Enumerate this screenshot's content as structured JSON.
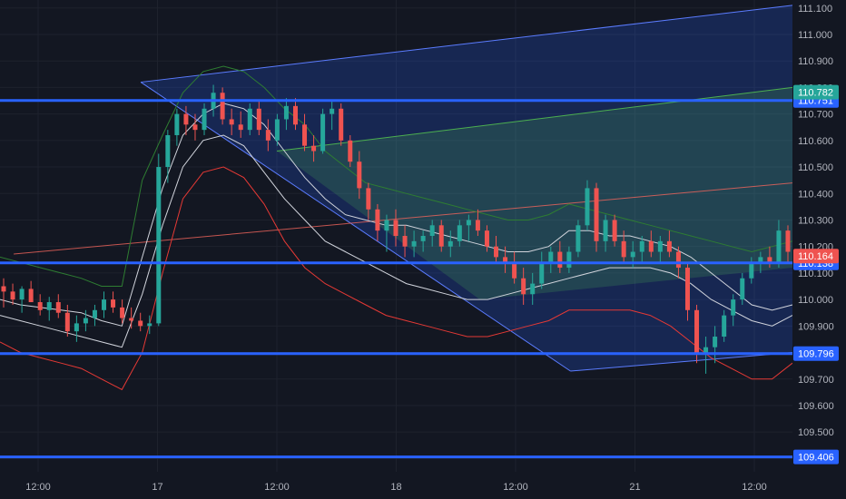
{
  "chart_data": {
    "type": "candlestick",
    "title": "",
    "xlabel": "",
    "ylabel": "",
    "ylim": [
      109.35,
      111.13
    ],
    "y_ticks": [
      "111.100",
      "111.000",
      "110.900",
      "110.800",
      "110.700",
      "110.600",
      "110.500",
      "110.400",
      "110.300",
      "110.200",
      "110.100",
      "110.000",
      "109.900",
      "109.800",
      "109.700",
      "109.600",
      "109.500",
      "109.400"
    ],
    "x_ticks": [
      {
        "label": "12:00",
        "t": 0
      },
      {
        "label": "17",
        "t": 0.5
      },
      {
        "label": "12:00",
        "t": 1.0
      },
      {
        "label": "18",
        "t": 1.5
      },
      {
        "label": "12:00",
        "t": 2.0
      },
      {
        "label": "21",
        "t": 2.5
      },
      {
        "label": "12:00",
        "t": 3.0
      }
    ],
    "horizontal_levels": [
      {
        "price": 110.751,
        "label": "110.751"
      },
      {
        "price": 110.138,
        "label": "110.138"
      },
      {
        "price": 109.796,
        "label": "109.796"
      },
      {
        "price": 109.406,
        "label": "109.406"
      }
    ],
    "price_badges": [
      {
        "price": 110.782,
        "label": "110.782",
        "color": "#26a69a"
      },
      {
        "price": 110.164,
        "label": "110.164",
        "color": "#ef5350"
      }
    ],
    "channel": {
      "upper_start": {
        "t": 0.43,
        "price": 110.82
      },
      "upper_end": {
        "t": 3.16,
        "price": 111.11
      },
      "lower_start": {
        "t": 2.23,
        "price": 109.73
      },
      "lower_end": {
        "t": 3.16,
        "price": 109.8
      },
      "mid_start": {
        "t": 0.43,
        "price": 110.24
      },
      "mid_end": {
        "t": 3.16,
        "price": 110.44
      }
    },
    "ohlc": [
      [
        110.05,
        110.08,
        109.97,
        110.03
      ],
      [
        110.03,
        110.06,
        109.98,
        110.0
      ],
      [
        110.0,
        110.05,
        109.95,
        110.04
      ],
      [
        110.04,
        110.07,
        110.0,
        109.99
      ],
      [
        109.99,
        110.02,
        109.94,
        109.96
      ],
      [
        109.96,
        110.01,
        109.92,
        109.99
      ],
      [
        109.99,
        110.02,
        109.93,
        109.95
      ],
      [
        109.95,
        109.98,
        109.86,
        109.88
      ],
      [
        109.88,
        109.94,
        109.84,
        109.91
      ],
      [
        109.91,
        109.96,
        109.88,
        109.93
      ],
      [
        109.93,
        109.98,
        109.9,
        109.96
      ],
      [
        109.96,
        110.03,
        109.93,
        110.0
      ],
      [
        110.0,
        110.03,
        109.95,
        109.97
      ],
      [
        109.97,
        110.0,
        109.91,
        109.93
      ],
      [
        109.93,
        109.97,
        109.89,
        109.92
      ],
      [
        109.92,
        109.95,
        109.88,
        109.9
      ],
      [
        109.9,
        109.94,
        109.87,
        109.91
      ],
      [
        109.91,
        110.55,
        109.9,
        110.5
      ],
      [
        110.5,
        110.64,
        110.44,
        110.62
      ],
      [
        110.62,
        110.72,
        110.58,
        110.7
      ],
      [
        110.7,
        110.73,
        110.62,
        110.66
      ],
      [
        110.66,
        110.7,
        110.6,
        110.64
      ],
      [
        110.64,
        110.74,
        110.62,
        110.72
      ],
      [
        110.72,
        110.81,
        110.69,
        110.78
      ],
      [
        110.78,
        110.8,
        110.66,
        110.68
      ],
      [
        110.68,
        110.72,
        110.62,
        110.66
      ],
      [
        110.66,
        110.71,
        110.61,
        110.64
      ],
      [
        110.64,
        110.74,
        110.62,
        110.72
      ],
      [
        110.72,
        110.75,
        110.62,
        110.64
      ],
      [
        110.64,
        110.68,
        110.56,
        110.6
      ],
      [
        110.6,
        110.7,
        110.58,
        110.68
      ],
      [
        110.68,
        110.76,
        110.64,
        110.73
      ],
      [
        110.73,
        110.76,
        110.64,
        110.66
      ],
      [
        110.66,
        110.7,
        110.56,
        110.58
      ],
      [
        110.58,
        110.62,
        110.52,
        110.56
      ],
      [
        110.56,
        110.72,
        110.55,
        110.7
      ],
      [
        110.7,
        110.75,
        110.64,
        110.72
      ],
      [
        110.72,
        110.74,
        110.58,
        110.6
      ],
      [
        110.6,
        110.62,
        110.5,
        110.52
      ],
      [
        110.52,
        110.56,
        110.38,
        110.42
      ],
      [
        110.42,
        110.44,
        110.3,
        110.34
      ],
      [
        110.34,
        110.36,
        110.22,
        110.26
      ],
      [
        110.26,
        110.32,
        110.18,
        110.3
      ],
      [
        110.3,
        110.34,
        110.2,
        110.24
      ],
      [
        110.24,
        110.28,
        110.16,
        110.2
      ],
      [
        110.2,
        110.26,
        110.16,
        110.22
      ],
      [
        110.22,
        110.26,
        110.18,
        110.24
      ],
      [
        110.24,
        110.3,
        110.2,
        110.28
      ],
      [
        110.28,
        110.3,
        110.18,
        110.2
      ],
      [
        110.2,
        110.26,
        110.16,
        110.22
      ],
      [
        110.22,
        110.3,
        110.2,
        110.28
      ],
      [
        110.28,
        110.32,
        110.22,
        110.3
      ],
      [
        110.3,
        110.34,
        110.24,
        110.26
      ],
      [
        110.26,
        110.28,
        110.18,
        110.2
      ],
      [
        110.2,
        110.24,
        110.14,
        110.16
      ],
      [
        110.16,
        110.2,
        110.1,
        110.14
      ],
      [
        110.14,
        110.18,
        110.06,
        110.08
      ],
      [
        110.08,
        110.12,
        109.98,
        110.02
      ],
      [
        110.02,
        110.1,
        109.98,
        110.06
      ],
      [
        110.06,
        110.18,
        110.04,
        110.14
      ],
      [
        110.14,
        110.2,
        110.1,
        110.18
      ],
      [
        110.18,
        110.22,
        110.1,
        110.12
      ],
      [
        110.12,
        110.2,
        110.1,
        110.18
      ],
      [
        110.18,
        110.3,
        110.16,
        110.28
      ],
      [
        110.28,
        110.45,
        110.26,
        110.42
      ],
      [
        110.42,
        110.44,
        110.18,
        110.22
      ],
      [
        110.22,
        110.32,
        110.18,
        110.3
      ],
      [
        110.3,
        110.32,
        110.2,
        110.22
      ],
      [
        110.22,
        110.26,
        110.14,
        110.16
      ],
      [
        110.16,
        110.22,
        110.12,
        110.18
      ],
      [
        110.18,
        110.24,
        110.14,
        110.22
      ],
      [
        110.22,
        110.26,
        110.16,
        110.18
      ],
      [
        110.18,
        110.24,
        110.14,
        110.22
      ],
      [
        110.22,
        110.26,
        110.16,
        110.18
      ],
      [
        110.18,
        110.2,
        110.08,
        110.12
      ],
      [
        110.12,
        110.14,
        109.92,
        109.96
      ],
      [
        109.96,
        109.98,
        109.76,
        109.8
      ],
      [
        109.8,
        109.86,
        109.72,
        109.82
      ],
      [
        109.82,
        109.9,
        109.76,
        109.86
      ],
      [
        109.86,
        109.96,
        109.84,
        109.94
      ],
      [
        109.94,
        110.02,
        109.9,
        110.0
      ],
      [
        110.0,
        110.1,
        109.98,
        110.08
      ],
      [
        110.08,
        110.16,
        110.06,
        110.14
      ],
      [
        110.14,
        110.18,
        110.1,
        110.16
      ],
      [
        110.16,
        110.2,
        110.12,
        110.14
      ],
      [
        110.14,
        110.3,
        110.12,
        110.26
      ],
      [
        110.26,
        110.28,
        110.14,
        110.18
      ]
    ],
    "bands": {
      "green_upper": [
        110.16,
        110.14,
        110.12,
        110.1,
        110.08,
        110.05,
        110.05,
        110.45,
        110.62,
        110.78,
        110.86,
        110.88,
        110.86,
        110.8,
        110.72,
        110.66,
        110.56,
        110.5,
        110.44,
        110.42,
        110.4,
        110.38,
        110.36,
        110.34,
        110.32,
        110.3,
        110.3,
        110.32,
        110.36,
        110.34,
        110.32,
        110.3,
        110.28,
        110.26,
        110.24,
        110.22,
        110.2,
        110.18,
        110.2,
        110.22
      ],
      "white_upper": [
        110.0,
        109.98,
        109.97,
        109.96,
        109.95,
        109.92,
        109.9,
        110.16,
        110.42,
        110.62,
        110.7,
        110.74,
        110.72,
        110.66,
        110.56,
        110.46,
        110.38,
        110.32,
        110.3,
        110.28,
        110.28,
        110.26,
        110.24,
        110.22,
        110.2,
        110.18,
        110.18,
        110.2,
        110.26,
        110.26,
        110.24,
        110.24,
        110.22,
        110.2,
        110.16,
        110.1,
        110.04,
        109.98,
        109.96,
        109.98
      ],
      "white_lower": [
        109.94,
        109.92,
        109.9,
        109.88,
        109.86,
        109.84,
        109.82,
        110.02,
        110.28,
        110.5,
        110.6,
        110.62,
        110.58,
        110.48,
        110.38,
        110.3,
        110.22,
        110.18,
        110.14,
        110.1,
        110.06,
        110.04,
        110.02,
        110.0,
        110.0,
        110.02,
        110.04,
        110.06,
        110.08,
        110.1,
        110.12,
        110.12,
        110.12,
        110.1,
        110.06,
        110.0,
        109.96,
        109.92,
        109.9,
        109.94
      ],
      "red_lower": [
        109.84,
        109.8,
        109.78,
        109.76,
        109.74,
        109.7,
        109.66,
        109.8,
        110.1,
        110.38,
        110.48,
        110.5,
        110.46,
        110.36,
        110.22,
        110.12,
        110.06,
        110.02,
        109.98,
        109.94,
        109.92,
        109.9,
        109.88,
        109.86,
        109.86,
        109.88,
        109.9,
        109.92,
        109.96,
        109.96,
        109.96,
        109.96,
        109.94,
        109.9,
        109.84,
        109.78,
        109.74,
        109.7,
        109.7,
        109.76
      ]
    }
  }
}
